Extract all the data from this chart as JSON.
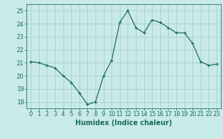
{
  "x": [
    0,
    1,
    2,
    3,
    4,
    5,
    6,
    7,
    8,
    9,
    10,
    11,
    12,
    13,
    14,
    15,
    16,
    17,
    18,
    19,
    20,
    21,
    22,
    23
  ],
  "y": [
    21.1,
    21.0,
    20.8,
    20.6,
    20.0,
    19.5,
    18.7,
    17.8,
    18.0,
    20.0,
    21.2,
    24.1,
    25.0,
    23.7,
    23.3,
    24.3,
    24.1,
    23.7,
    23.3,
    23.3,
    22.5,
    21.1,
    20.8,
    20.9
  ],
  "line_color": "#1a6b5e",
  "marker": "+",
  "bg_color": "#c8eae8",
  "grid_color": "#a8cece",
  "xlabel": "Humidex (Indice chaleur)",
  "ylim": [
    17.5,
    25.5
  ],
  "xlim": [
    -0.5,
    23.5
  ],
  "yticks": [
    18,
    19,
    20,
    21,
    22,
    23,
    24,
    25
  ],
  "xticks": [
    0,
    1,
    2,
    3,
    4,
    5,
    6,
    7,
    8,
    9,
    10,
    11,
    12,
    13,
    14,
    15,
    16,
    17,
    18,
    19,
    20,
    21,
    22,
    23
  ],
  "xtick_labels": [
    "0",
    "1",
    "2",
    "3",
    "4",
    "5",
    "6",
    "7",
    "8",
    "9",
    "10",
    "11",
    "12",
    "13",
    "14",
    "15",
    "16",
    "17",
    "18",
    "19",
    "20",
    "21",
    "22",
    "23"
  ],
  "text_color": "#1a6b5e",
  "label_fontsize": 7,
  "tick_fontsize": 6
}
